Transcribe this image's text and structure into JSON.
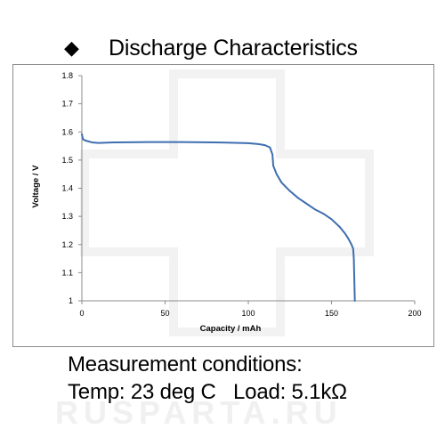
{
  "heading": {
    "bullet_icon": "diamond-bullet-icon",
    "title": "Discharge Characteristics"
  },
  "chart_data": {
    "type": "line",
    "title": "",
    "xlabel": "Capacity  /  mAh",
    "ylabel": "Voltage  /  V",
    "xlim": [
      0,
      200
    ],
    "ylim": [
      1.0,
      1.8
    ],
    "x_ticks": [
      "0",
      "50",
      "100",
      "150",
      "200"
    ],
    "y_ticks": [
      "1",
      "1.1",
      "1.2",
      "1.3",
      "1.4",
      "1.5",
      "1.6",
      "1.7",
      "1.8"
    ],
    "grid": false,
    "line_color": "#3e6eb0",
    "series": [
      {
        "x": [
          0,
          0.5,
          1,
          3,
          6,
          10,
          20,
          40,
          60,
          80,
          100,
          106,
          110,
          113,
          114.5,
          115,
          117,
          120,
          125,
          130,
          135,
          140,
          145,
          150,
          155,
          158,
          160,
          162,
          163,
          163.4,
          163.6,
          163.8,
          164
        ],
        "y": [
          1.592,
          1.578,
          1.572,
          1.568,
          1.563,
          1.561,
          1.563,
          1.564,
          1.564,
          1.563,
          1.56,
          1.557,
          1.553,
          1.545,
          1.52,
          1.48,
          1.45,
          1.42,
          1.39,
          1.365,
          1.345,
          1.325,
          1.31,
          1.29,
          1.262,
          1.24,
          1.222,
          1.2,
          1.185,
          1.15,
          1.1,
          1.05,
          1.0
        ]
      }
    ]
  },
  "conditions": {
    "line1": "Measurement conditions:",
    "line2": "Temp: 23 deg C   Load: 5.1kΩ"
  },
  "watermark": {
    "text": "RUSPARTA.RU"
  }
}
